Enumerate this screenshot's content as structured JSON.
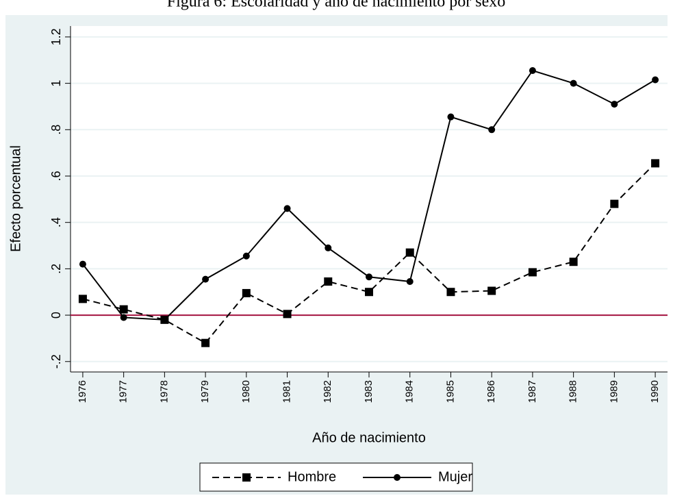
{
  "chart_data": {
    "type": "line",
    "title": "Figura 6: Escolaridad y año de nacimiento por sexo",
    "x_label": "Año de nacimiento",
    "y_label": "Efecto porcentual",
    "x": [
      1976,
      1977,
      1978,
      1979,
      1980,
      1981,
      1982,
      1983,
      1984,
      1985,
      1986,
      1987,
      1988,
      1989,
      1990
    ],
    "series": [
      {
        "name": "Hombre",
        "color": "#000000",
        "dash": "dashed",
        "marker": "square",
        "values": [
          0.07,
          0.025,
          -0.02,
          -0.12,
          0.095,
          0.005,
          0.145,
          0.1,
          0.27,
          0.1,
          0.105,
          0.185,
          0.23,
          0.48,
          0.655
        ]
      },
      {
        "name": "Mujer",
        "color": "#000000",
        "dash": "solid",
        "marker": "circle",
        "values": [
          0.22,
          -0.01,
          -0.02,
          0.155,
          0.255,
          0.46,
          0.29,
          0.165,
          0.145,
          0.855,
          0.8,
          1.055,
          1.0,
          0.91,
          1.015
        ]
      }
    ],
    "reference_line": {
      "value": 0,
      "color": "#a4123f"
    },
    "xlim": [
      1975.7,
      1990.3
    ],
    "xticks": [
      1976,
      1977,
      1978,
      1979,
      1980,
      1981,
      1982,
      1983,
      1984,
      1985,
      1986,
      1987,
      1988,
      1989,
      1990
    ],
    "ylim": [
      -0.245,
      1.247
    ],
    "yticks": [
      {
        "value": -0.2,
        "label": "-.2"
      },
      0,
      {
        "value": 0.2,
        "label": ".2"
      },
      {
        "value": 0.4,
        "label": ".4"
      },
      {
        "value": 0.6,
        "label": ".6"
      },
      {
        "value": 0.8,
        "label": ".8"
      },
      1,
      {
        "value": 1.2,
        "label": "1.2"
      }
    ],
    "grid": true,
    "legend": "bottom"
  }
}
